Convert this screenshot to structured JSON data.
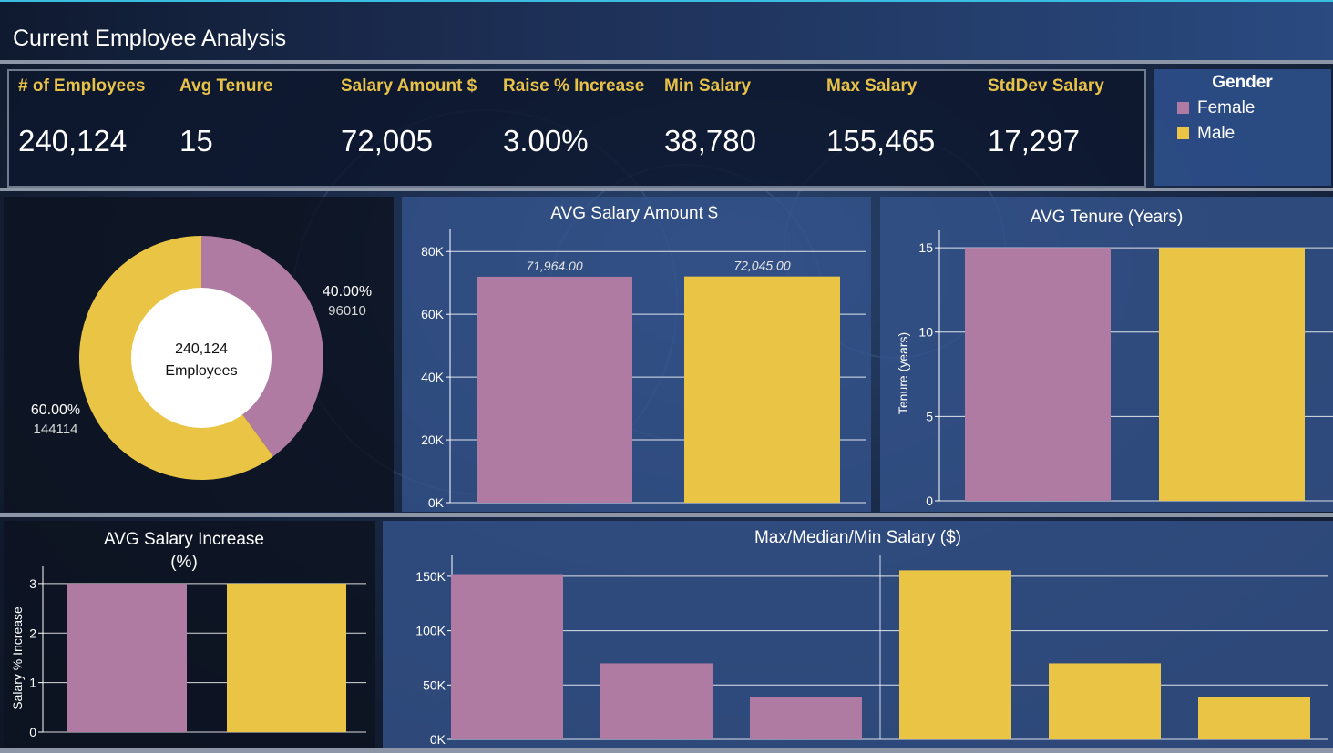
{
  "header": {
    "title": "Current Employee Analysis"
  },
  "colors": {
    "female": "#b07ba3",
    "male": "#eac545",
    "label_gold": "#e8c248"
  },
  "kpis": [
    {
      "label": "# of Employees",
      "value": "240,124"
    },
    {
      "label": "Avg Tenure",
      "value": "15"
    },
    {
      "label": "Salary Amount $",
      "value": "72,005"
    },
    {
      "label": "Raise % Increase",
      "value": "3.00%"
    },
    {
      "label": "Min Salary",
      "value": "38,780"
    },
    {
      "label": "Max Salary",
      "value": "155,465"
    },
    {
      "label": "StdDev Salary",
      "value": "17,297"
    }
  ],
  "legend": {
    "title": "Gender",
    "items": [
      {
        "label": "Female",
        "icon": "square"
      },
      {
        "label": "Male",
        "icon": "square"
      }
    ]
  },
  "chart_data": [
    {
      "id": "donut",
      "type": "pie",
      "center_label": [
        "240,124",
        "Employees"
      ],
      "slices": [
        {
          "name": "Female",
          "value": 96010,
          "percent": "40.00%",
          "count_label": "96010"
        },
        {
          "name": "Male",
          "value": 144114,
          "percent": "60.00%",
          "count_label": "144114"
        }
      ]
    },
    {
      "id": "avg_salary",
      "type": "bar",
      "title": "AVG Salary Amount $",
      "categories": [
        "Female",
        "Male"
      ],
      "values": [
        71964,
        72045
      ],
      "data_labels": [
        "71,964.00",
        "72,045.00"
      ],
      "ylim": [
        0,
        85000
      ],
      "yticks": [
        0,
        20000,
        40000,
        60000,
        80000
      ],
      "ytick_labels": [
        "0K",
        "20K",
        "40K",
        "60K",
        "80K"
      ],
      "ylabel": ""
    },
    {
      "id": "avg_tenure",
      "type": "bar",
      "title": "AVG Tenure (Years)",
      "categories": [
        "Female",
        "Male"
      ],
      "values": [
        15,
        15
      ],
      "ylim": [
        0,
        15.6
      ],
      "yticks": [
        0,
        5,
        10,
        15
      ],
      "ytick_labels": [
        "0",
        "5",
        "10",
        "15"
      ],
      "ylabel": "Tenure (years)"
    },
    {
      "id": "avg_increase",
      "type": "bar",
      "title": "AVG Salary Increase\n(%)",
      "title_lines": [
        "AVG Salary Increase",
        "(%)"
      ],
      "categories": [
        "Female",
        "Male"
      ],
      "values": [
        3,
        3
      ],
      "ylim": [
        0,
        3.2
      ],
      "yticks": [
        0,
        1,
        2,
        3
      ],
      "ytick_labels": [
        "0",
        "1",
        "2",
        "3"
      ],
      "ylabel": "Salary % Increase"
    },
    {
      "id": "max_median_min",
      "type": "bar",
      "title": "Max/Median/Min Salary ($)",
      "groups": [
        {
          "name": "Female",
          "categories": [
            "Max",
            "Median",
            "Min"
          ],
          "values": [
            152000,
            70000,
            38780
          ]
        },
        {
          "name": "Male",
          "categories": [
            "Max",
            "Median",
            "Min"
          ],
          "values": [
            155465,
            70000,
            38780
          ]
        }
      ],
      "ylim": [
        0,
        165000
      ],
      "yticks": [
        0,
        50000,
        100000,
        150000
      ],
      "ytick_labels": [
        "0K",
        "50K",
        "100K",
        "150K"
      ],
      "ylabel": ""
    }
  ]
}
